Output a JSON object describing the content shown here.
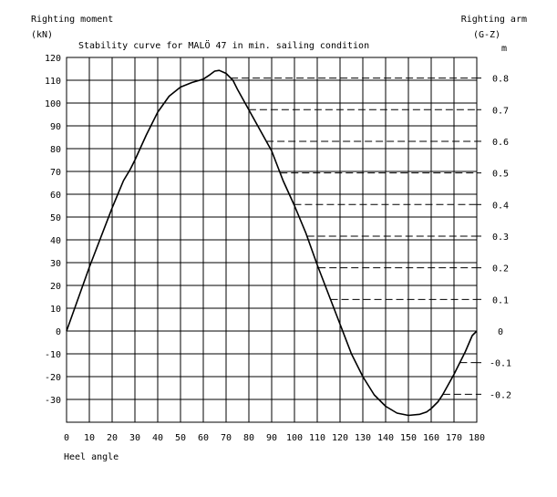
{
  "chart_data": {
    "type": "line",
    "title": "Stability curve for MALÖ 47 in min. sailing condition",
    "left_axis": {
      "label_line1": "Righting moment",
      "label_line2": "(kN)",
      "ylim": [
        -40,
        120
      ],
      "ticks": [
        120,
        110,
        100,
        90,
        80,
        70,
        60,
        50,
        40,
        30,
        20,
        10,
        0,
        -10,
        -20,
        -30
      ]
    },
    "right_axis": {
      "label_line1": "Righting arm",
      "label_line2": "(G-Z)",
      "unit": "m",
      "ticks": [
        "0.8",
        "0.7",
        "0.6",
        "0.5",
        "0.4",
        "0.3",
        "0.2",
        "0.1",
        "0",
        "-0.1",
        "-0.2"
      ]
    },
    "x_axis": {
      "label": "Heel angle",
      "xlim": [
        0,
        180
      ],
      "ticks": [
        0,
        10,
        20,
        30,
        40,
        50,
        60,
        70,
        80,
        90,
        100,
        110,
        120,
        130,
        140,
        150,
        160,
        170,
        180
      ]
    },
    "grid": true,
    "series": [
      {
        "x": [
          0,
          5,
          10,
          15,
          20,
          25,
          28,
          30,
          35,
          40,
          45,
          50,
          55,
          60,
          63,
          65,
          67,
          70,
          73,
          75,
          80,
          85,
          90,
          95,
          100,
          105,
          110,
          115,
          120,
          125,
          130,
          135,
          140,
          145,
          150,
          155,
          158,
          160,
          163,
          165,
          170,
          175,
          178,
          180
        ],
        "y": [
          0,
          14,
          28,
          41,
          54,
          66,
          71,
          75,
          86,
          96,
          103,
          107,
          109,
          110.5,
          112.5,
          114,
          114.3,
          113,
          110,
          106,
          97,
          88,
          79,
          66,
          55,
          43,
          29,
          16,
          3,
          -10,
          -20,
          -28,
          -33,
          -36,
          -37,
          -36.5,
          -35.5,
          -34,
          -31,
          -28,
          -19,
          -9,
          -2,
          0
        ]
      }
    ]
  }
}
